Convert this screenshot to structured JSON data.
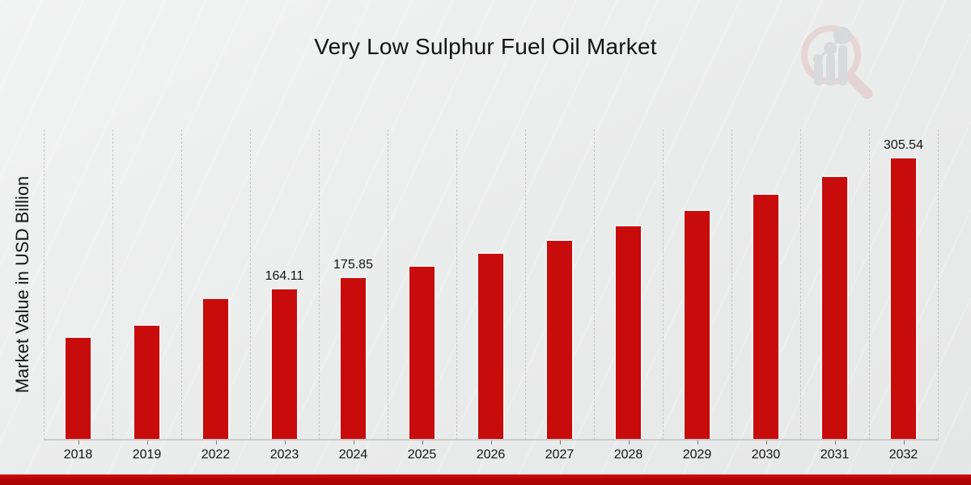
{
  "chart_data": {
    "type": "bar",
    "title": "Very Low Sulphur Fuel Oil Market",
    "xlabel": "",
    "ylabel": "Market Value in USD Billion",
    "categories": [
      "2018",
      "2019",
      "2022",
      "2023",
      "2024",
      "2025",
      "2026",
      "2027",
      "2028",
      "2029",
      "2030",
      "2031",
      "2032"
    ],
    "values": [
      111.2,
      124.3,
      152.9,
      164.11,
      175.85,
      188.4,
      201.9,
      216.3,
      231.8,
      248.4,
      266.1,
      285.2,
      305.54
    ],
    "value_labels": [
      "",
      "",
      "",
      "164.11",
      "175.85",
      "",
      "",
      "",
      "",
      "",
      "",
      "",
      "305.54"
    ],
    "ylim": [
      0,
      336
    ],
    "grid": "vertical-dashed",
    "legend": "none",
    "bar_color": "#c80b0b"
  },
  "colors": {
    "background": "#ebecec",
    "bar": "#c80b0b",
    "bottom_band": "#b40505",
    "gridline": "#c3c4c5",
    "text": "#141414"
  },
  "logo": {
    "name": "magnifier-bar-chart-logo"
  }
}
